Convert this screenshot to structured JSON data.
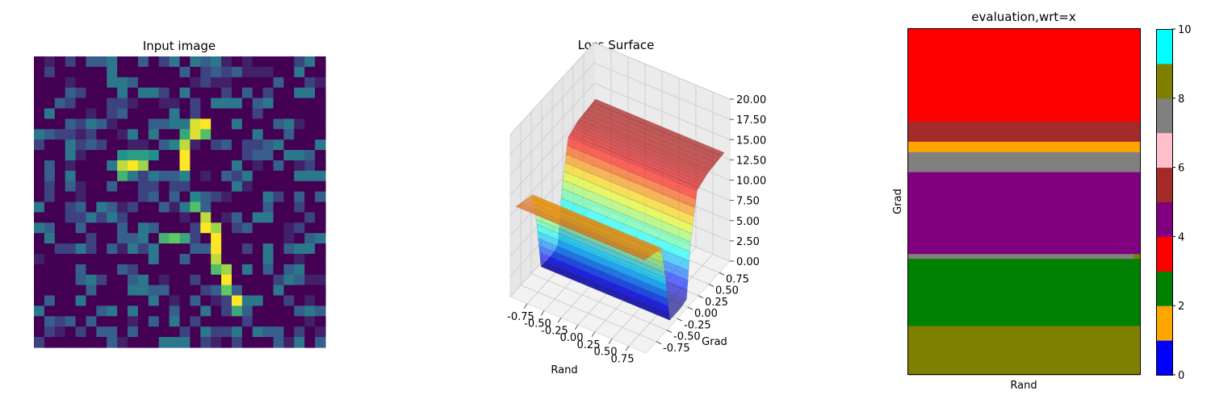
{
  "chart_data": [
    {
      "type": "heatmap",
      "title": "Input image",
      "rows": 28,
      "cols": 28,
      "colormap": "viridis",
      "axis_visible": false,
      "description_of_content": [],
      "background_level": 0.0,
      "noise_levels": [
        0.0,
        0.1,
        0.2,
        0.3,
        0.4
      ],
      "highlight_cells": [
        {
          "row": 6,
          "col": 15,
          "value": 0.95
        },
        {
          "row": 6,
          "col": 16,
          "value": 1.0
        },
        {
          "row": 7,
          "col": 14,
          "value": 0.6
        },
        {
          "row": 7,
          "col": 15,
          "value": 0.95
        },
        {
          "row": 7,
          "col": 16,
          "value": 0.7
        },
        {
          "row": 8,
          "col": 13,
          "value": 0.45
        },
        {
          "row": 8,
          "col": 14,
          "value": 0.9
        },
        {
          "row": 9,
          "col": 8,
          "value": 0.5
        },
        {
          "row": 9,
          "col": 9,
          "value": 0.55
        },
        {
          "row": 9,
          "col": 10,
          "value": 0.55
        },
        {
          "row": 9,
          "col": 11,
          "value": 0.5
        },
        {
          "row": 9,
          "col": 14,
          "value": 1.0
        },
        {
          "row": 10,
          "col": 7,
          "value": 0.4
        },
        {
          "row": 10,
          "col": 8,
          "value": 0.9
        },
        {
          "row": 10,
          "col": 9,
          "value": 1.0
        },
        {
          "row": 10,
          "col": 10,
          "value": 0.85
        },
        {
          "row": 10,
          "col": 14,
          "value": 1.0
        },
        {
          "row": 11,
          "col": 8,
          "value": 0.65
        },
        {
          "row": 11,
          "col": 14,
          "value": 0.45
        },
        {
          "row": 13,
          "col": 15,
          "value": 0.45
        },
        {
          "row": 14,
          "col": 15,
          "value": 0.7
        },
        {
          "row": 15,
          "col": 16,
          "value": 0.9
        },
        {
          "row": 16,
          "col": 16,
          "value": 1.0
        },
        {
          "row": 16,
          "col": 17,
          "value": 0.85
        },
        {
          "row": 17,
          "col": 12,
          "value": 0.65
        },
        {
          "row": 17,
          "col": 13,
          "value": 0.75
        },
        {
          "row": 17,
          "col": 14,
          "value": 0.6
        },
        {
          "row": 17,
          "col": 17,
          "value": 1.0
        },
        {
          "row": 18,
          "col": 17,
          "value": 1.0
        },
        {
          "row": 19,
          "col": 17,
          "value": 0.9
        },
        {
          "row": 20,
          "col": 17,
          "value": 0.7
        },
        {
          "row": 20,
          "col": 18,
          "value": 0.85
        },
        {
          "row": 21,
          "col": 18,
          "value": 1.0
        },
        {
          "row": 22,
          "col": 18,
          "value": 0.75
        },
        {
          "row": 23,
          "col": 19,
          "value": 1.0
        },
        {
          "row": 24,
          "col": 19,
          "value": 0.6
        }
      ]
    },
    {
      "type": "surface3d",
      "title": "Loss Surface",
      "xlabel": "Rand",
      "ylabel": "Grad",
      "zlabel": "",
      "xticks": [
        "-0.75",
        "-0.50",
        "-0.25",
        "0.00",
        "0.25",
        "0.50",
        "0.75"
      ],
      "yticks": [
        "-0.75",
        "-0.50",
        "-0.25",
        "0.00",
        "0.25",
        "0.50",
        "0.75"
      ],
      "zticks": [
        "0.00",
        "2.50",
        "5.00",
        "7.50",
        "10.00",
        "12.50",
        "15.00",
        "17.50",
        "20.00"
      ],
      "zlim": [
        0,
        20
      ],
      "colormap": "jet",
      "surface_profile": [
        {
          "grad": -0.95,
          "loss": 11.0
        },
        {
          "grad": -0.75,
          "loss": 10.6
        },
        {
          "grad": -0.55,
          "loss": 10.2
        },
        {
          "grad": -0.45,
          "loss": 6.0
        },
        {
          "grad": -0.35,
          "loss": 0.2
        },
        {
          "grad": -0.1,
          "loss": 0.2
        },
        {
          "grad": 0.05,
          "loss": 0.5
        },
        {
          "grad": 0.15,
          "loss": 7.0
        },
        {
          "grad": 0.3,
          "loss": 12.5
        },
        {
          "grad": 0.55,
          "loss": 13.2
        },
        {
          "grad": 0.95,
          "loss": 13.5
        }
      ]
    },
    {
      "type": "categorical_map",
      "title": "evaluation,wrt=x",
      "xlabel": "Rand",
      "ylabel": "Grad",
      "bands_top_to_bottom": [
        {
          "fraction": 0.268,
          "category": 3.5,
          "color": "#ff0000"
        },
        {
          "fraction": 0.058,
          "category": 5.5,
          "color": "#a52a2a"
        },
        {
          "fraction": 0.03,
          "category": 1.5,
          "color": "#ffa500"
        },
        {
          "fraction": 0.058,
          "category": 7.5,
          "color": "#808080"
        },
        {
          "fraction": 0.237,
          "category": 4.5,
          "color": "#800080"
        },
        {
          "fraction": 0.058,
          "category": 7.5,
          "color": "#808080",
          "partial_width_fraction": 0.97,
          "remainder_color": "#808000"
        },
        {
          "fraction": 0.15,
          "category": 2.5,
          "color": "#008000"
        },
        {
          "fraction": 0.141,
          "category": 8.5,
          "color": "#808000"
        }
      ],
      "colorbar": {
        "ticks": [
          "0",
          "2",
          "4",
          "6",
          "8",
          "10"
        ],
        "range": [
          0,
          10
        ],
        "colors_bottom_to_top": [
          "#0000ff",
          "#ffa500",
          "#008000",
          "#ff0000",
          "#800080",
          "#a52a2a",
          "#ffc0cb",
          "#808080",
          "#808000",
          "#00ffff"
        ]
      }
    }
  ]
}
